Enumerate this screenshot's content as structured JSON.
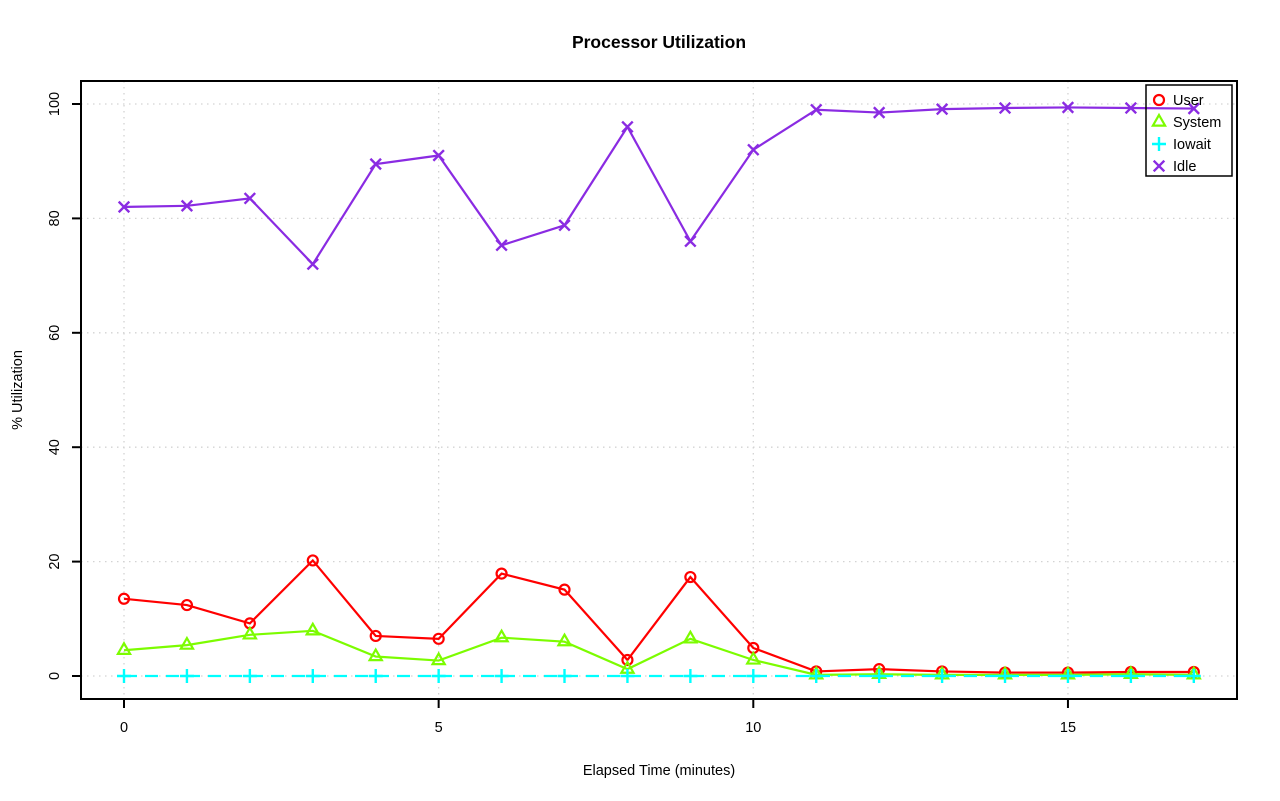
{
  "chart_data": {
    "type": "line",
    "title": "Processor Utilization",
    "xlabel": "Elapsed Time (minutes)",
    "ylabel": "% Utilization",
    "x": [
      0,
      1,
      2,
      3,
      4,
      5,
      6,
      7,
      8,
      9,
      10,
      11,
      12,
      13,
      14,
      15,
      16,
      17
    ],
    "x_ticks": [
      0,
      5,
      10,
      15
    ],
    "y_ticks": [
      0,
      20,
      40,
      60,
      80,
      100
    ],
    "xlim": [
      -0.7,
      17.7
    ],
    "ylim": [
      -4,
      104
    ],
    "grid": "dotted",
    "legend_position": "top-right",
    "legend_transparent": true,
    "series": [
      {
        "name": "User",
        "marker": "circle",
        "color": "#ff0000",
        "line_style": "solid",
        "values": [
          13.5,
          12.4,
          9.2,
          20.2,
          7.0,
          6.5,
          17.9,
          15.1,
          2.8,
          17.3,
          4.9,
          0.8,
          1.2,
          0.8,
          0.6,
          0.6,
          0.7,
          0.7
        ]
      },
      {
        "name": "System",
        "marker": "triangle",
        "color": "#7cfc00",
        "line_style": "solid",
        "values": [
          4.5,
          5.4,
          7.2,
          7.9,
          3.4,
          2.7,
          6.7,
          6.0,
          1.2,
          6.5,
          2.8,
          0.2,
          0.3,
          0.2,
          0.2,
          0.2,
          0.3,
          0.2
        ]
      },
      {
        "name": "Iowait",
        "marker": "plus",
        "color": "#00ffff",
        "line_style": "dashed",
        "values": [
          0,
          0,
          0,
          0,
          0,
          0,
          0,
          0,
          0,
          0,
          0,
          0,
          0,
          0,
          0,
          0,
          0,
          0
        ]
      },
      {
        "name": "Idle",
        "marker": "x",
        "color": "#8a2be2",
        "line_style": "solid",
        "values": [
          82.0,
          82.2,
          83.5,
          72.0,
          89.5,
          91.0,
          75.3,
          78.8,
          96.0,
          76.0,
          92.0,
          99.0,
          98.5,
          99.1,
          99.3,
          99.4,
          99.3,
          99.2
        ]
      }
    ],
    "colors": {
      "axis": "#000000",
      "grid": "#d3d3d3",
      "background": "#ffffff",
      "text": "#000000"
    }
  }
}
